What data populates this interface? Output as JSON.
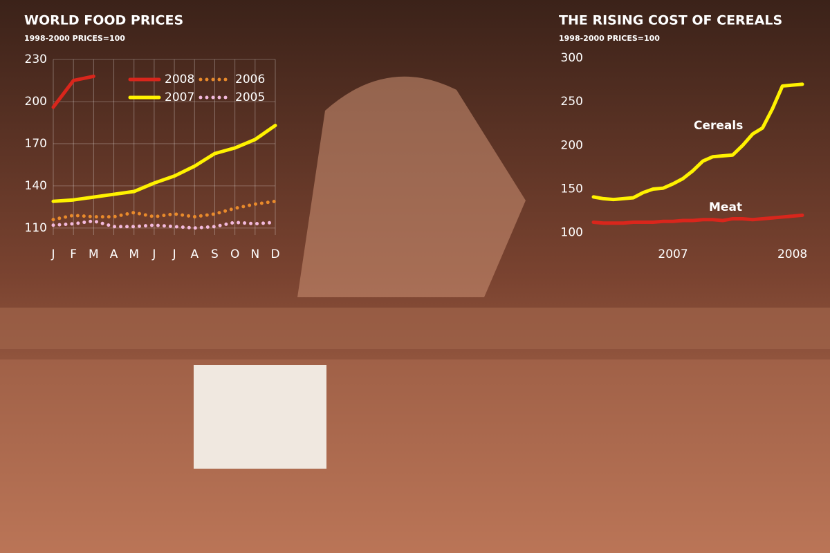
{
  "chart_data": [
    {
      "type": "line",
      "title": "WORLD FOOD PRICES",
      "subtitle": "1998-2000 PRICES=100",
      "categories": [
        "J",
        "F",
        "M",
        "A",
        "M",
        "J",
        "J",
        "A",
        "S",
        "O",
        "N",
        "D"
      ],
      "series": [
        {
          "name": "2008",
          "color": "#d9261c",
          "style": "solid",
          "values": [
            196,
            215,
            218,
            null,
            null,
            null,
            null,
            null,
            null,
            null,
            null,
            null
          ]
        },
        {
          "name": "2006",
          "color": "#e98a2b",
          "style": "dotted",
          "values": [
            116,
            119,
            118,
            118,
            121,
            118,
            120,
            118,
            120,
            124,
            127,
            129
          ]
        },
        {
          "name": "2007",
          "color": "#fff200",
          "style": "solid",
          "values": [
            129,
            130,
            132,
            134,
            136,
            142,
            147,
            154,
            163,
            167,
            173,
            183
          ]
        },
        {
          "name": "2005",
          "color": "#f2b9dc",
          "style": "dotted",
          "values": [
            112,
            113,
            115,
            111,
            111,
            112,
            111,
            110,
            111,
            114,
            113,
            114
          ]
        }
      ],
      "ylim": [
        105,
        230
      ],
      "yticks": [
        110,
        140,
        170,
        200,
        230
      ],
      "grid": true
    },
    {
      "type": "line",
      "title": "THE RISING COST OF CEREALS",
      "subtitle": "1998-2000 PRICES=100",
      "categories": [
        null,
        null,
        null,
        null,
        null,
        null,
        null,
        null,
        "2007",
        null,
        null,
        null,
        null,
        null,
        null,
        null,
        null,
        null,
        null,
        null,
        "2008",
        null
      ],
      "series": [
        {
          "name": "Cereals",
          "color": "#fff200",
          "style": "solid",
          "values": [
            141,
            139,
            138,
            139,
            140,
            146,
            150,
            151,
            156,
            162,
            171,
            182,
            187,
            188,
            189,
            200,
            213,
            220,
            242,
            268,
            269,
            270
          ]
        },
        {
          "name": "Meat",
          "color": "#d9261c",
          "style": "solid",
          "values": [
            112,
            111,
            111,
            111,
            112,
            112,
            112,
            113,
            113,
            114,
            114,
            115,
            115,
            114,
            116,
            116,
            115,
            116,
            117,
            118,
            119,
            120
          ]
        }
      ],
      "ylim": [
        95,
        300
      ],
      "yticks": [
        100,
        150,
        200,
        250,
        300
      ],
      "grid": false
    }
  ]
}
